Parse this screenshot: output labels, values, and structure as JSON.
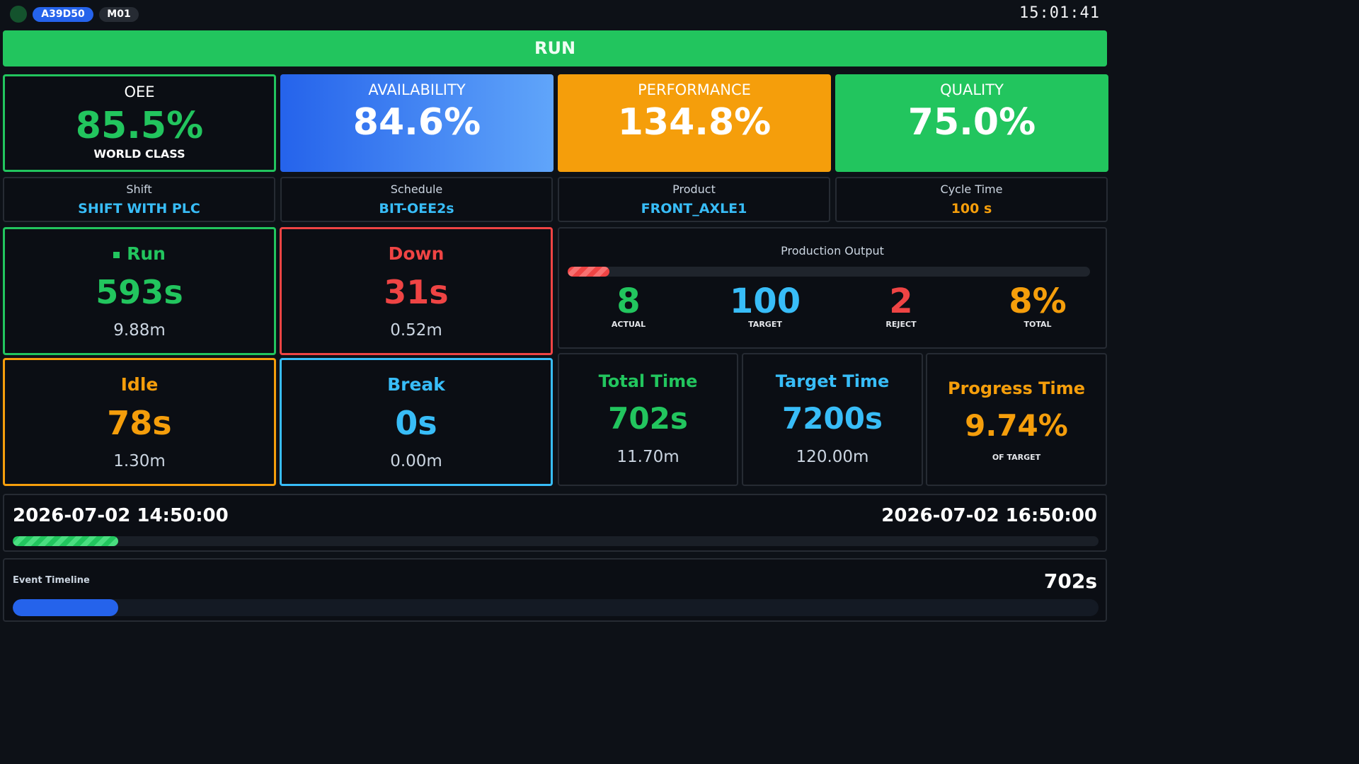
{
  "header": {
    "machine_id": "A39D50",
    "machine_code": "M01",
    "clock": "15:01:41"
  },
  "status": {
    "label": "RUN",
    "color": "#22c55e"
  },
  "kpis": {
    "oee": {
      "label": "OEE",
      "value": "85.5%",
      "rating": "WORLD CLASS"
    },
    "availability": {
      "label": "AVAILABILITY",
      "value": "84.6%"
    },
    "performance": {
      "label": "PERFORMANCE",
      "value": "134.8%"
    },
    "quality": {
      "label": "QUALITY",
      "value": "75.0%"
    }
  },
  "info": {
    "shift": {
      "label": "Shift",
      "value": "SHIFT WITH PLC"
    },
    "schedule": {
      "label": "Schedule",
      "value": "BIT-OEE2s"
    },
    "product": {
      "label": "Product",
      "value": "FRONT_AXLE1"
    },
    "cycle_time": {
      "label": "Cycle Time",
      "value": "100 s"
    }
  },
  "states": {
    "run": {
      "label": "Run",
      "seconds": "593s",
      "minutes": "9.88m"
    },
    "down": {
      "label": "Down",
      "seconds": "31s",
      "minutes": "0.52m"
    },
    "idle": {
      "label": "Idle",
      "seconds": "78s",
      "minutes": "1.30m"
    },
    "break": {
      "label": "Break",
      "seconds": "0s",
      "minutes": "0.00m"
    }
  },
  "production": {
    "title": "Production Output",
    "progress_fraction": 0.08,
    "actual": {
      "value": "8",
      "caption": "ACTUAL"
    },
    "target": {
      "value": "100",
      "caption": "TARGET"
    },
    "reject": {
      "value": "2",
      "caption": "REJECT"
    },
    "total": {
      "value": "8%",
      "caption": "TOTAL"
    }
  },
  "times": {
    "total": {
      "label": "Total Time",
      "seconds": "702s",
      "minutes": "11.70m"
    },
    "target": {
      "label": "Target Time",
      "seconds": "7200s",
      "minutes": "120.00m"
    },
    "progress": {
      "label": "Progress Time",
      "value": "9.74%",
      "caption": "OF TARGET"
    }
  },
  "shift_range": {
    "start": "2026-07-02 14:50:00",
    "end": "2026-07-02 16:50:00",
    "progress_fraction": 0.0974
  },
  "event_timeline": {
    "label": "Event Timeline",
    "value": "702s",
    "progress_fraction": 0.0974
  },
  "colors": {
    "green": "#22c55e",
    "red": "#ef4444",
    "amber": "#f59e0b",
    "sky": "#38bdf8",
    "blue": "#2563eb"
  }
}
